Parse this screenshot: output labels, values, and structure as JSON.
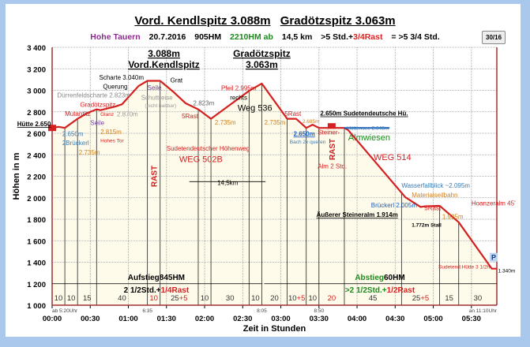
{
  "header": {
    "title_left": "Vord. Kendlspitz 3.088m",
    "title_right": "Gradötzspitz 3.063m",
    "region": "Hohe Tauern",
    "date": "20.7.2016",
    "ascent": "905HM",
    "descent": "2210HM ab",
    "distance": "14,5 km",
    "duration": ">5 Std.+",
    "rest": "3/4Rast",
    "total": "= >5 3/4 Std.",
    "badge": "30/16",
    "colors": {
      "region": "#8b2a8b",
      "descent": "#1a8a1a",
      "rest": "#e02020"
    }
  },
  "chart_data": {
    "type": "area",
    "title": "Vord. Kendlspitz 3.088m Gradötzspitz 3.063m",
    "xlabel": "Zeit in Stunden",
    "ylabel": "Höhen in m",
    "xlim": [
      0,
      350
    ],
    "ylim": [
      1000,
      3400
    ],
    "grid": true,
    "line_color": "#d42020",
    "yticks": [
      1000,
      1200,
      1400,
      1600,
      1800,
      2000,
      2200,
      2400,
      2600,
      2800,
      3000,
      3200,
      3400
    ],
    "ytick_labels": [
      "1 000",
      "1 200",
      "1 400",
      "1 600",
      "1 800",
      "2 000",
      "2 200",
      "2 400",
      "2 600",
      "2 800",
      "3 000",
      "3 200",
      "3 400"
    ],
    "xticks": [
      0,
      30,
      60,
      90,
      120,
      150,
      180,
      210,
      240,
      270,
      300,
      330
    ],
    "xtick_labels": [
      "00:00",
      "00:30",
      "01:00",
      "01:30",
      "02:00",
      "02:30",
      "03:00",
      "03:30",
      "04:00",
      "04:30",
      "05:00",
      "05:30"
    ],
    "profile": {
      "t": [
        0,
        5,
        10,
        20,
        28,
        35,
        38,
        50,
        55,
        68,
        75,
        85,
        95,
        105,
        115,
        125,
        155,
        165,
        185,
        192,
        200,
        205,
        210,
        230,
        233,
        278,
        290,
        293,
        305,
        320,
        346,
        350
      ],
      "h": [
        2650,
        2660,
        2650,
        2735,
        2790,
        2823,
        2815,
        2850,
        2870,
        3040,
        3088,
        3088,
        2990,
        2880,
        2823,
        2735,
        2995,
        3063,
        2735,
        2735,
        2650,
        2680,
        2650,
        2650,
        2630,
        2005,
        1914,
        1920,
        1925,
        1772,
        1340,
        1340
      ]
    },
    "segments": [
      {
        "end": 10,
        "label": "10"
      },
      {
        "end": 20,
        "label": "10"
      },
      {
        "end": 35,
        "label": "15"
      },
      {
        "end": 75,
        "label": "40"
      },
      {
        "end": 85,
        "label": "10",
        "rest": true
      },
      {
        "end": 115,
        "label": "25",
        "extra": "+5"
      },
      {
        "end": 125,
        "label": "10"
      },
      {
        "end": 155,
        "label": "30"
      },
      {
        "end": 165,
        "label": "10"
      },
      {
        "end": 185,
        "label": "20"
      },
      {
        "end": 200,
        "label": "10",
        "extra": "+5"
      },
      {
        "end": 210,
        "label": "10"
      },
      {
        "end": 230,
        "label": "20",
        "rest": true
      },
      {
        "end": 275,
        "label": "45"
      },
      {
        "end": 305,
        "label": "25",
        "extra": "+5"
      },
      {
        "end": 320,
        "label": "15"
      },
      {
        "end": 350,
        "label": "30"
      }
    ],
    "clock_labels": [
      {
        "t": 0,
        "text": "ab 5:20Uhr"
      },
      {
        "t": 75,
        "text": "6:35"
      },
      {
        "t": 165,
        "text": "8:05"
      },
      {
        "t": 210,
        "text": "8:50"
      },
      {
        "t": 350,
        "text": "an 11:10Uhr"
      }
    ],
    "peaks": [
      {
        "t": 88,
        "h1": 3400,
        "elev": "3.088m",
        "name": "Vord.Kendlspitz"
      },
      {
        "t": 165,
        "h1": 3400,
        "elev": "3.063m",
        "name": "Gradötzspitz"
      }
    ],
    "annotations": [
      {
        "t": -1,
        "h": 2650,
        "text": "Hütte 2.650",
        "color": "#000000",
        "bold": true,
        "anchor": "end",
        "underline": true
      },
      {
        "t": 10,
        "h": 2760,
        "text": "Mutantitz",
        "color": "#d42020"
      },
      {
        "t": 22,
        "h": 2815,
        "text": "Gradötzspitz",
        "color": "#d42020"
      },
      {
        "t": 4,
        "h": 2860,
        "text": "Dürrenfeldscharte 2.823m",
        "color": "#888888"
      },
      {
        "t": 30,
        "h": 2735,
        "text": "Seile",
        "color": "#7040a0"
      },
      {
        "t": 8,
        "h": 2575,
        "text": "2.650m",
        "color": "#3a7ab0"
      },
      {
        "t": 8,
        "h": 2520,
        "text": "2Brückerl",
        "color": "#3a7ab0"
      },
      {
        "t": 21,
        "h": 2680,
        "text": "2.735m",
        "color": "#d08020"
      },
      {
        "t": 38,
        "h": 2680,
        "text": "2.815m",
        "color": "#d08020"
      },
      {
        "t": 38,
        "h": 2620,
        "text": "Hohes Tor",
        "color": "#d42020",
        "small": true
      },
      {
        "t": 38,
        "h": 2570,
        "text": "Glanz",
        "color": "#d42020",
        "small": true
      },
      {
        "t": 40,
        "h": 2765,
        "text": "Querung",
        "color": "#000000"
      },
      {
        "t": 51,
        "h": 2845,
        "text": "2.870m",
        "color": "#999999"
      },
      {
        "t": 37,
        "h": 3040,
        "text": "Scharte 3.040m",
        "color": "#000000"
      },
      {
        "t": 75,
        "h": 3005,
        "text": "Seile",
        "color": "#7040a0"
      },
      {
        "t": 93,
        "h": 3075,
        "text": "Grat",
        "color": "#000000"
      },
      {
        "t": 70,
        "h": 2940,
        "text": "Schuttreise",
        "color": "#999999"
      },
      {
        "t": 73,
        "h": 2900,
        "text": "(nicht haltbar)",
        "color": "#999999",
        "small": true
      },
      {
        "t": 111,
        "h": 2860,
        "text": "2.823m",
        "color": "#666666"
      },
      {
        "t": 102,
        "h": 2740,
        "text": "5Rast",
        "color": "#d42020"
      },
      {
        "t": 128,
        "h": 2680,
        "text": "2.735m",
        "color": "#d08020"
      },
      {
        "t": 90,
        "h": 2440,
        "text": "Sudetendeutscher Höhenweg",
        "color": "#d42020"
      },
      {
        "t": 100,
        "h": 2360,
        "text": "WEG  502B",
        "color": "#d42020",
        "big": true
      },
      {
        "t": 133,
        "h": 3000,
        "text": "Pfeil 2.995m",
        "color": "#d42020"
      },
      {
        "t": 140,
        "h": 2955,
        "text": "rechts",
        "color": "#000000"
      },
      {
        "t": 146,
        "h": 2840,
        "text": "Weg 536",
        "color": "#000000",
        "big": true
      },
      {
        "t": 167,
        "h": 2680,
        "text": "2.735m",
        "color": "#d08020"
      },
      {
        "t": 183,
        "h": 2675,
        "text": "5Rast",
        "color": "#d42020"
      },
      {
        "t": 197,
        "h": 2740,
        "text": "2.685m",
        "color": "#d08020",
        "small": true
      },
      {
        "t": 190,
        "h": 2575,
        "text": "2.650m",
        "color": "#1a5fc0",
        "bold": true,
        "underline": true
      },
      {
        "t": 187,
        "h": 2535,
        "text": "Bach 2x queren",
        "color": "#3a7ab0",
        "small": true
      },
      {
        "t": 211,
        "h": 2735,
        "text": "2.650m Sudetendeutsche Hü.",
        "color": "#000000",
        "bold": true,
        "underline": true
      },
      {
        "t": 232,
        "h": 2632,
        "text": "Hüttensee 2.646m",
        "color": "#3a7ab0",
        "small": true
      },
      {
        "t": 209,
        "h": 2545,
        "text": "Steiner-",
        "color": "#d42020"
      },
      {
        "t": 209,
        "h": 2495,
        "text": "Alm 2 Std.",
        "color": "#d42020"
      },
      {
        "t": 233,
        "h": 2565,
        "text": "Almwiesen",
        "color": "#1a8a1a",
        "big": true
      },
      {
        "t": 253,
        "h": 2350,
        "text": "WEG 514",
        "color": "#d42020",
        "big": true
      },
      {
        "t": 275,
        "h": 2095,
        "text": "Wasserfallblick ~2.095m",
        "color": "#3a7ab0"
      },
      {
        "t": 283,
        "h": 2035,
        "text": "Materialseilbahn",
        "color": "#d08020"
      },
      {
        "t": 251,
        "h": 2000,
        "text": "Brückerl 2.005m",
        "color": "#1a5fc0"
      },
      {
        "t": 208,
        "h": 1895,
        "text": "Äußerer Steineralm 1.914m",
        "color": "#000000",
        "bold": true,
        "underline": true
      },
      {
        "t": 293,
        "h": 1885,
        "text": "5Rast",
        "color": "#d42020"
      },
      {
        "t": 307,
        "h": 1950,
        "text": "1.925m",
        "color": "#d08020"
      },
      {
        "t": 330,
        "h": 1930,
        "text": "Hoanzeralm 45'",
        "color": "#d42020"
      },
      {
        "t": 283,
        "h": 1775,
        "text": "1.772m Stall",
        "color": "#000000",
        "bold": true,
        "small": true
      },
      {
        "t": 304,
        "h": 1385,
        "text": "Sudetend.Hütte 3 1/2h",
        "color": "#d42020",
        "small": true
      },
      {
        "t": 351,
        "h": 1305,
        "text": "1.340m",
        "color": "#000000",
        "small": true
      },
      {
        "t": 130,
        "h": 2120,
        "text": "14,5km",
        "color": "#000000"
      }
    ],
    "summary": {
      "ascent_label": "Aufstieg",
      "ascent_hm": "845HM",
      "ascent_time": "2 1/2Std.+",
      "ascent_rest": "1/4Rast",
      "descent_label": "Abstieg",
      "descent_hm": "60HM",
      "descent_time": ">2 1/2Std.+",
      "descent_rest": "1/2Rast",
      "rest_label": "RAST",
      "parking": "P"
    }
  }
}
